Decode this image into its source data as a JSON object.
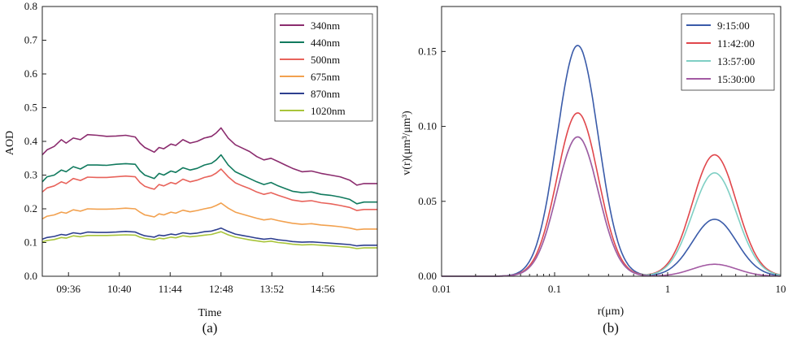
{
  "chart_data": [
    {
      "type": "line",
      "panel_label": "(a)",
      "title": "",
      "xlabel": "Time",
      "ylabel": "AOD",
      "xlim": [
        9.05,
        16.08
      ],
      "ylim": [
        0.0,
        0.8
      ],
      "xticks": [
        9.6,
        10.6667,
        11.7333,
        12.8,
        13.8667,
        14.9333
      ],
      "xtick_labels": [
        "09:36",
        "10:40",
        "11:44",
        "12:48",
        "13:52",
        "14:56"
      ],
      "yticks": [
        0.0,
        0.1,
        0.2,
        0.3,
        0.4,
        0.5,
        0.6,
        0.7,
        0.8
      ],
      "ytick_labels": [
        "0.0",
        "0.1",
        "0.2",
        "0.3",
        "0.4",
        "0.5",
        "0.6",
        "0.7",
        "0.8"
      ],
      "legend_position": "top-right",
      "x": [
        9.05,
        9.15,
        9.3,
        9.45,
        9.55,
        9.7,
        9.85,
        10.0,
        10.2,
        10.4,
        10.6,
        10.8,
        11.0,
        11.1,
        11.2,
        11.3,
        11.4,
        11.5,
        11.6,
        11.75,
        11.85,
        12.0,
        12.15,
        12.3,
        12.45,
        12.6,
        12.7,
        12.8,
        12.95,
        13.1,
        13.25,
        13.4,
        13.55,
        13.7,
        13.85,
        14.0,
        14.15,
        14.3,
        14.5,
        14.7,
        14.9,
        15.1,
        15.3,
        15.5,
        15.65,
        15.8,
        16.08
      ],
      "series": [
        {
          "name": "340nm",
          "color": "#8B2C6E",
          "values": [
            0.36,
            0.375,
            0.385,
            0.405,
            0.395,
            0.41,
            0.405,
            0.42,
            0.418,
            0.415,
            0.416,
            0.418,
            0.413,
            0.395,
            0.382,
            0.375,
            0.368,
            0.382,
            0.378,
            0.392,
            0.388,
            0.405,
            0.395,
            0.4,
            0.41,
            0.415,
            0.425,
            0.44,
            0.41,
            0.39,
            0.38,
            0.37,
            0.355,
            0.345,
            0.35,
            0.34,
            0.33,
            0.32,
            0.31,
            0.312,
            0.305,
            0.3,
            0.295,
            0.285,
            0.27,
            0.275,
            0.275
          ]
        },
        {
          "name": "440nm",
          "color": "#117A5E",
          "values": [
            0.28,
            0.295,
            0.3,
            0.315,
            0.31,
            0.325,
            0.318,
            0.33,
            0.33,
            0.329,
            0.332,
            0.334,
            0.332,
            0.313,
            0.3,
            0.295,
            0.29,
            0.305,
            0.3,
            0.312,
            0.308,
            0.322,
            0.315,
            0.32,
            0.33,
            0.335,
            0.345,
            0.36,
            0.33,
            0.31,
            0.3,
            0.29,
            0.28,
            0.272,
            0.278,
            0.268,
            0.26,
            0.252,
            0.248,
            0.25,
            0.243,
            0.24,
            0.235,
            0.228,
            0.215,
            0.22,
            0.22
          ]
        },
        {
          "name": "500nm",
          "color": "#E8635B",
          "values": [
            0.25,
            0.262,
            0.268,
            0.28,
            0.275,
            0.29,
            0.284,
            0.294,
            0.293,
            0.293,
            0.295,
            0.297,
            0.295,
            0.278,
            0.267,
            0.262,
            0.258,
            0.272,
            0.268,
            0.278,
            0.274,
            0.288,
            0.28,
            0.285,
            0.293,
            0.298,
            0.306,
            0.318,
            0.295,
            0.277,
            0.268,
            0.26,
            0.25,
            0.243,
            0.248,
            0.24,
            0.233,
            0.226,
            0.222,
            0.224,
            0.218,
            0.215,
            0.21,
            0.204,
            0.195,
            0.198,
            0.198
          ]
        },
        {
          "name": "675nm",
          "color": "#F2A14F",
          "values": [
            0.17,
            0.178,
            0.182,
            0.19,
            0.187,
            0.197,
            0.193,
            0.2,
            0.199,
            0.199,
            0.2,
            0.202,
            0.2,
            0.19,
            0.182,
            0.179,
            0.176,
            0.185,
            0.182,
            0.19,
            0.187,
            0.196,
            0.191,
            0.195,
            0.2,
            0.204,
            0.21,
            0.217,
            0.202,
            0.19,
            0.184,
            0.178,
            0.172,
            0.167,
            0.17,
            0.165,
            0.161,
            0.157,
            0.154,
            0.156,
            0.152,
            0.15,
            0.147,
            0.143,
            0.138,
            0.14,
            0.14
          ]
        },
        {
          "name": "870nm",
          "color": "#2E3F8F",
          "values": [
            0.11,
            0.115,
            0.118,
            0.124,
            0.122,
            0.129,
            0.126,
            0.131,
            0.13,
            0.13,
            0.131,
            0.133,
            0.131,
            0.125,
            0.12,
            0.118,
            0.116,
            0.122,
            0.12,
            0.125,
            0.123,
            0.129,
            0.126,
            0.128,
            0.132,
            0.134,
            0.138,
            0.143,
            0.133,
            0.125,
            0.121,
            0.117,
            0.113,
            0.11,
            0.112,
            0.108,
            0.106,
            0.103,
            0.101,
            0.102,
            0.1,
            0.098,
            0.096,
            0.094,
            0.09,
            0.092,
            0.092
          ]
        },
        {
          "name": "1020nm",
          "color": "#A8C43A",
          "values": [
            0.102,
            0.106,
            0.109,
            0.115,
            0.113,
            0.12,
            0.117,
            0.121,
            0.121,
            0.121,
            0.122,
            0.123,
            0.122,
            0.116,
            0.112,
            0.11,
            0.108,
            0.113,
            0.111,
            0.116,
            0.114,
            0.12,
            0.117,
            0.119,
            0.122,
            0.124,
            0.128,
            0.132,
            0.123,
            0.116,
            0.112,
            0.108,
            0.105,
            0.102,
            0.104,
            0.1,
            0.098,
            0.095,
            0.093,
            0.094,
            0.092,
            0.09,
            0.088,
            0.086,
            0.082,
            0.084,
            0.084
          ]
        }
      ]
    },
    {
      "type": "line",
      "panel_label": "(b)",
      "title": "",
      "xlabel": "r(μm)",
      "ylabel": "v(r)(μm³/μm³)",
      "xscale": "log",
      "xlim": [
        0.01,
        10
      ],
      "ylim": [
        0.0,
        0.18
      ],
      "xticks": [
        0.01,
        0.1,
        1,
        10
      ],
      "xtick_labels": [
        "0.01",
        "0.1",
        "1",
        "10"
      ],
      "yticks": [
        0.0,
        0.05,
        0.1,
        0.15
      ],
      "ytick_labels": [
        "0.00",
        "0.05",
        "0.10",
        "0.15"
      ],
      "legend_position": "top-right",
      "mode_params": {
        "fine_median_r": 0.16,
        "fine_sigma_ln": 0.42,
        "coarse_median_r": 2.6,
        "coarse_sigma_ln": 0.45
      },
      "series": [
        {
          "name": "9:15:00",
          "color": "#3A5BA9",
          "fine_peak": 0.154,
          "coarse_peak": 0.038
        },
        {
          "name": "11:42:00",
          "color": "#E0474C",
          "fine_peak": 0.109,
          "coarse_peak": 0.081
        },
        {
          "name": "13:57:00",
          "color": "#7FCFC4",
          "fine_peak": 0.093,
          "coarse_peak": 0.069
        },
        {
          "name": "15:30:00",
          "color": "#A35AA3",
          "fine_peak": 0.093,
          "coarse_peak": 0.008
        }
      ]
    }
  ]
}
